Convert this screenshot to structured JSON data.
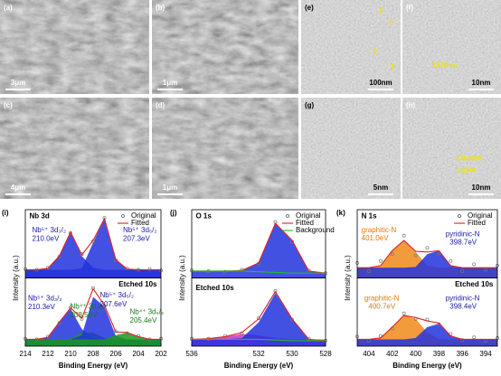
{
  "images": [
    {
      "label": "(a)",
      "scale_bar": "3μm",
      "notes": []
    },
    {
      "label": "(b)",
      "scale_bar": "1μm",
      "notes": []
    },
    {
      "label": "(e)",
      "scale_bar": "100nm",
      "notes": [
        "2",
        "3",
        "2",
        "1"
      ]
    },
    {
      "label": "(f)",
      "scale_bar": "10nm",
      "notes": [
        "13.5nm"
      ]
    },
    {
      "label": "(c)",
      "scale_bar": "4μm",
      "notes": []
    },
    {
      "label": "(d)",
      "scale_bar": "1μm",
      "notes": []
    },
    {
      "label": "(g)",
      "scale_bar": "5nm",
      "notes": []
    },
    {
      "label": "(h)",
      "scale_bar": "10nm",
      "notes": [
        "Carbon",
        "Layer"
      ]
    }
  ],
  "chart_data": [
    {
      "type": "line",
      "label": "(i)",
      "x_label": "Binding Energy (eV)",
      "y_label": "Intensity (a.u.)",
      "xlim": [
        214,
        202
      ],
      "xticks": [
        214,
        212,
        210,
        208,
        206,
        204,
        202
      ],
      "ylim": [
        0,
        100
      ],
      "x": [
        214,
        213,
        212,
        211,
        210,
        209,
        208,
        207,
        206,
        205,
        204,
        203,
        202
      ],
      "panels": [
        {
          "title": "Nb 3d",
          "legend": true,
          "components": [
            {
              "color": "#2233dd",
              "values": [
                12,
                12,
                14,
                32,
                67,
                32,
                15,
                12,
                12,
                12,
                12,
                12,
                12
              ]
            },
            {
              "color": "#2233dd",
              "values": [
                12,
                12,
                12,
                12,
                12,
                14,
                52,
                87,
                27,
                13,
                12,
                12,
                12
              ]
            }
          ],
          "series": [
            {
              "name": "Original",
              "style": "markers",
              "color": "#777777",
              "values": [
                13,
                12,
                15,
                31,
                66,
                35,
                54,
                88,
                26,
                14,
                12,
                13,
                11
              ]
            },
            {
              "name": "Fitted",
              "style": "line",
              "color": "#e02020",
              "values": [
                12,
                12,
                14,
                32,
                67,
                34,
                55,
                87,
                27,
                13,
                12,
                12,
                12
              ]
            }
          ],
          "annotations": [
            {
              "text": "Nb⁵⁺ 3d₃/₂",
              "color": "#1a1aa6"
            },
            {
              "text": "210.0eV",
              "color": "#1a1aa6"
            },
            {
              "text": "Nb⁵⁺ 3d₅/₂",
              "color": "#1a1aa6"
            },
            {
              "text": "207.3eV",
              "color": "#1a1aa6"
            }
          ]
        },
        {
          "title": "Etched 10s",
          "components": [
            {
              "color": "#2233dd",
              "values": [
                10,
                10,
                13,
                35,
                55,
                25,
                12,
                10,
                10,
                10,
                10,
                10,
                10
              ]
            },
            {
              "color": "#1a9a1a",
              "values": [
                10,
                10,
                10,
                10,
                11,
                20,
                20,
                12,
                10,
                10,
                10,
                10,
                10
              ]
            },
            {
              "color": "#2233dd",
              "values": [
                10,
                10,
                10,
                10,
                10,
                16,
                72,
                58,
                15,
                10,
                10,
                10,
                10
              ]
            },
            {
              "color": "#1a9a1a",
              "values": [
                10,
                10,
                10,
                10,
                10,
                10,
                10,
                10,
                16,
                20,
                14,
                10,
                10
              ]
            }
          ],
          "series": [
            {
              "style": "markers",
              "color": "#777777",
              "values": [
                11,
                10,
                14,
                34,
                57,
                40,
                85,
                59,
                22,
                19,
                15,
                10,
                11
              ]
            },
            {
              "style": "line",
              "color": "#e02020",
              "values": [
                10,
                10,
                13,
                35,
                56,
                41,
                84,
                60,
                21,
                20,
                14,
                10,
                10
              ]
            }
          ],
          "annotations": [
            {
              "text": "Nb⁵⁺ 3d₃/₂",
              "color": "#1a1aa6"
            },
            {
              "text": "210.3eV",
              "color": "#1a1aa6"
            },
            {
              "text": "Nb⁴⁺ 3d₃/₂",
              "color": "#1a7a1a"
            },
            {
              "text": "208.5eV",
              "color": "#1a7a1a"
            },
            {
              "text": "Nb⁵⁺ 3d₅/₂",
              "color": "#1a1aa6"
            },
            {
              "text": "207.6eV",
              "color": "#1a1aa6"
            },
            {
              "text": "Nb⁴⁺ 3d₅/₂",
              "color": "#1a7a1a"
            },
            {
              "text": "205.4eV",
              "color": "#1a7a1a"
            }
          ]
        }
      ]
    },
    {
      "type": "line",
      "label": "(j)",
      "x_label": "Binding Energy (eV)",
      "y_label": "Intensity (a.u.)",
      "xlim": [
        536,
        528
      ],
      "xticks": [
        536,
        532,
        530,
        528
      ],
      "ylim": [
        0,
        100
      ],
      "x": [
        536,
        535,
        534,
        533,
        532,
        531,
        530,
        529,
        528
      ],
      "panels": [
        {
          "title": "O 1s",
          "legend": true,
          "components": [
            {
              "color": "#2233dd",
              "values": [
                10,
                10,
                10,
                11,
                22,
                80,
                55,
                10,
                7
              ]
            }
          ],
          "series": [
            {
              "name": "Original",
              "style": "markers",
              "color": "#777777",
              "values": [
                11,
                10,
                9,
                12,
                21,
                82,
                53,
                11,
                7
              ]
            },
            {
              "name": "Fitted",
              "style": "line",
              "color": "#e02020",
              "values": [
                10,
                10,
                10,
                11,
                22,
                80,
                55,
                10,
                7
              ]
            },
            {
              "name": "Background",
              "style": "line",
              "color": "#20c020",
              "values": [
                10,
                10,
                10,
                10,
                9,
                8,
                7,
                7,
                7
              ]
            }
          ],
          "annotations": []
        },
        {
          "title": "Etched 10s",
          "components": [
            {
              "color": "#cc33cc",
              "values": [
                10,
                11,
                14,
                18,
                16,
                12,
                10,
                10,
                10
              ]
            },
            {
              "color": "#2233dd",
              "values": [
                10,
                10,
                10,
                12,
                35,
                78,
                40,
                10,
                8
              ]
            }
          ],
          "series": [
            {
              "style": "markers",
              "color": "#777777",
              "values": [
                11,
                11,
                15,
                19,
                41,
                81,
                39,
                11,
                8
              ]
            },
            {
              "style": "line",
              "color": "#e02020",
              "values": [
                10,
                11,
                14,
                20,
                40,
                80,
                40,
                10,
                8
              ]
            },
            {
              "style": "line",
              "color": "#20c020",
              "values": [
                10,
                10,
                10,
                10,
                10,
                9,
                8,
                8,
                8
              ]
            }
          ],
          "annotations": []
        }
      ]
    },
    {
      "type": "line",
      "label": "(k)",
      "x_label": "Binding Energy (eV)",
      "y_label": "Intensity (a.u.)",
      "xlim": [
        405,
        393
      ],
      "xticks": [
        404,
        402,
        400,
        398,
        396,
        394
      ],
      "ylim": [
        0,
        100
      ],
      "x": [
        405,
        404,
        403,
        402,
        401,
        400,
        399,
        398,
        397,
        396,
        395,
        394,
        393
      ],
      "panels": [
        {
          "title": "N 1s",
          "legend": true,
          "components": [
            {
              "color": "#f08a1a",
              "values": [
                15,
                15,
                18,
                40,
                55,
                38,
                18,
                15,
                15,
                15,
                15,
                15,
                15
              ]
            },
            {
              "color": "#2233dd",
              "values": [
                15,
                15,
                15,
                15,
                15,
                16,
                35,
                40,
                18,
                15,
                15,
                15,
                15
              ]
            }
          ],
          "series": [
            {
              "name": "Original",
              "style": "markers",
              "color": "#777777",
              "values": [
                22,
                10,
                25,
                35,
                62,
                33,
                44,
                36,
                25,
                10,
                20,
                12,
                18
              ]
            },
            {
              "name": "Fitted",
              "style": "line",
              "color": "#e02020",
              "values": [
                15,
                15,
                18,
                40,
                55,
                39,
                38,
                40,
                18,
                15,
                15,
                15,
                15
              ]
            }
          ],
          "annotations": [
            {
              "text": "graphitic-N",
              "color": "#e07a10"
            },
            {
              "text": "401.0eV",
              "color": "#e07a10"
            },
            {
              "text": "pyridinic-N",
              "color": "#1a1aa6"
            },
            {
              "text": "398.7eV",
              "color": "#1a1aa6"
            }
          ]
        },
        {
          "title": "Etched 10s",
          "components": [
            {
              "color": "#f08a1a",
              "values": [
                10,
                10,
                12,
                28,
                45,
                40,
                20,
                11,
                10,
                10,
                10,
                10,
                10
              ]
            },
            {
              "color": "#2233dd",
              "values": [
                10,
                10,
                10,
                10,
                10,
                12,
                28,
                33,
                15,
                10,
                10,
                10,
                10
              ]
            }
          ],
          "series": [
            {
              "style": "markers",
              "color": "#777777",
              "values": [
                14,
                8,
                15,
                26,
                48,
                40,
                39,
                32,
                18,
                9,
                13,
                8,
                12
              ]
            },
            {
              "style": "line",
              "color": "#e02020",
              "values": [
                10,
                10,
                12,
                28,
                45,
                42,
                37,
                34,
                15,
                10,
                10,
                10,
                10
              ]
            }
          ],
          "annotations": [
            {
              "text": "graphitic-N",
              "color": "#e07a10"
            },
            {
              "text": "400.7eV",
              "color": "#e07a10"
            },
            {
              "text": "pyridinic-N",
              "color": "#1a1aa6"
            },
            {
              "text": "398.4eV",
              "color": "#1a1aa6"
            }
          ]
        }
      ]
    }
  ]
}
